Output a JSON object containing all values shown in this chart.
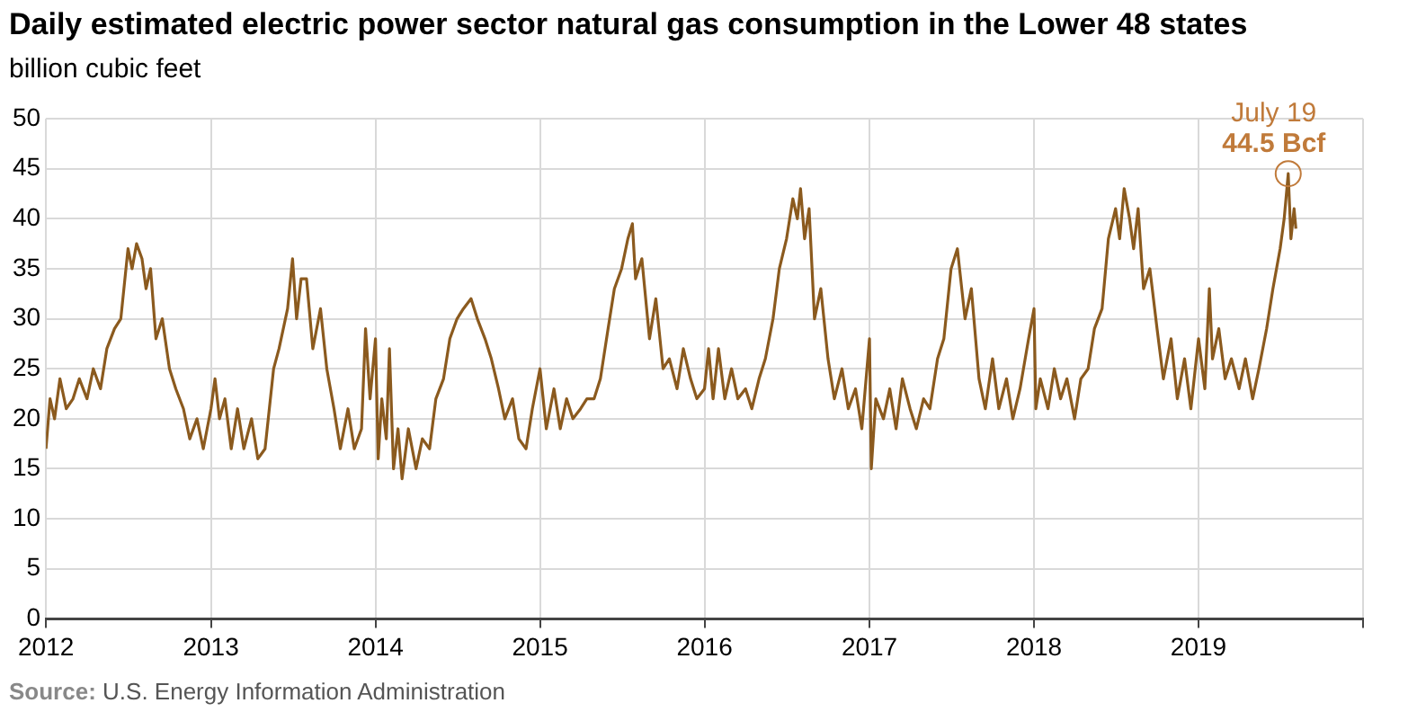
{
  "chart_data": {
    "type": "line",
    "title": "Daily estimated electric power sector natural gas consumption in the Lower 48 states",
    "ylabel": "billion cubic feet",
    "annotations": [
      {
        "text": "July 19",
        "x": "2019-07-19",
        "y": 44.5
      },
      {
        "text": "44.5 Bcf",
        "x": "2019-07-19",
        "y": 44.5
      },
      "Source: U.S. Energy Information Administration"
    ],
    "xlim": [
      "2012",
      "2020"
    ],
    "xticks": [
      "2012",
      "2013",
      "2014",
      "2015",
      "2016",
      "2017",
      "2018",
      "2019",
      {
        "value": "2020",
        "label": null
      }
    ],
    "ylim": [
      0,
      50
    ],
    "yticks": [
      0,
      5,
      10,
      15,
      20,
      25,
      30,
      35,
      40,
      45,
      50
    ],
    "grid": true,
    "legend": false,
    "marker": "none",
    "line_style": "solid",
    "series": [
      {
        "color": "#8b5a1e",
        "x": [
          "2012-01-01",
          "2012-01-10",
          "2012-01-20",
          "2012-02-01",
          "2012-02-15",
          "2012-03-01",
          "2012-03-15",
          "2012-04-01",
          "2012-04-15",
          "2012-05-01",
          "2012-05-15",
          "2012-06-01",
          "2012-06-15",
          "2012-07-01",
          "2012-07-10",
          "2012-07-20",
          "2012-08-01",
          "2012-08-10",
          "2012-08-20",
          "2012-09-01",
          "2012-09-15",
          "2012-10-01",
          "2012-10-15",
          "2012-11-01",
          "2012-11-15",
          "2012-12-01",
          "2012-12-15",
          "2013-01-01",
          "2013-01-10",
          "2013-01-20",
          "2013-02-01",
          "2013-02-15",
          "2013-03-01",
          "2013-03-15",
          "2013-04-01",
          "2013-04-15",
          "2013-05-01",
          "2013-05-20",
          "2013-06-01",
          "2013-06-20",
          "2013-07-01",
          "2013-07-10",
          "2013-07-20",
          "2013-08-01",
          "2013-08-15",
          "2013-09-01",
          "2013-09-15",
          "2013-10-01",
          "2013-10-15",
          "2013-11-01",
          "2013-11-15",
          "2013-12-01",
          "2013-12-10",
          "2013-12-20",
          "2014-01-01",
          "2014-01-07",
          "2014-01-15",
          "2014-01-25",
          "2014-02-01",
          "2014-02-10",
          "2014-02-20",
          "2014-03-01",
          "2014-03-15",
          "2014-04-01",
          "2014-04-15",
          "2014-05-01",
          "2014-05-15",
          "2014-06-01",
          "2014-06-15",
          "2014-07-01",
          "2014-07-15",
          "2014-08-01",
          "2014-08-15",
          "2014-09-01",
          "2014-09-15",
          "2014-10-01",
          "2014-10-15",
          "2014-11-01",
          "2014-11-15",
          "2014-12-01",
          "2014-12-15",
          "2015-01-01",
          "2015-01-15",
          "2015-02-01",
          "2015-02-15",
          "2015-03-01",
          "2015-03-15",
          "2015-04-01",
          "2015-04-15",
          "2015-05-01",
          "2015-05-15",
          "2015-06-01",
          "2015-06-15",
          "2015-07-01",
          "2015-07-15",
          "2015-07-25",
          "2015-08-01",
          "2015-08-15",
          "2015-09-01",
          "2015-09-15",
          "2015-10-01",
          "2015-10-15",
          "2015-11-01",
          "2015-11-15",
          "2015-12-01",
          "2015-12-15",
          "2016-01-01",
          "2016-01-10",
          "2016-01-20",
          "2016-02-01",
          "2016-02-15",
          "2016-03-01",
          "2016-03-15",
          "2016-04-01",
          "2016-04-15",
          "2016-05-01",
          "2016-05-15",
          "2016-06-01",
          "2016-06-15",
          "2016-07-01",
          "2016-07-15",
          "2016-07-25",
          "2016-08-01",
          "2016-08-10",
          "2016-08-20",
          "2016-09-01",
          "2016-09-15",
          "2016-10-01",
          "2016-10-15",
          "2016-11-01",
          "2016-11-15",
          "2016-12-01",
          "2016-12-15",
          "2017-01-01",
          "2017-01-05",
          "2017-01-15",
          "2017-02-01",
          "2017-02-15",
          "2017-03-01",
          "2017-03-15",
          "2017-04-01",
          "2017-04-15",
          "2017-05-01",
          "2017-05-15",
          "2017-06-01",
          "2017-06-15",
          "2017-07-01",
          "2017-07-15",
          "2017-08-01",
          "2017-08-15",
          "2017-09-01",
          "2017-09-15",
          "2017-10-01",
          "2017-10-15",
          "2017-11-01",
          "2017-11-15",
          "2017-12-01",
          "2017-12-20",
          "2018-01-01",
          "2018-01-05",
          "2018-01-15",
          "2018-02-01",
          "2018-02-15",
          "2018-03-01",
          "2018-03-15",
          "2018-04-01",
          "2018-04-15",
          "2018-05-01",
          "2018-05-15",
          "2018-06-01",
          "2018-06-15",
          "2018-07-01",
          "2018-07-10",
          "2018-07-20",
          "2018-08-01",
          "2018-08-10",
          "2018-08-20",
          "2018-09-01",
          "2018-09-15",
          "2018-10-01",
          "2018-10-15",
          "2018-11-01",
          "2018-11-15",
          "2018-12-01",
          "2018-12-15",
          "2019-01-01",
          "2019-01-15",
          "2019-01-25",
          "2019-02-01",
          "2019-02-15",
          "2019-03-01",
          "2019-03-15",
          "2019-04-01",
          "2019-04-15",
          "2019-05-01",
          "2019-05-15",
          "2019-06-01",
          "2019-06-15",
          "2019-07-01",
          "2019-07-10",
          "2019-07-19",
          "2019-07-25",
          "2019-08-01",
          "2019-08-05"
        ],
        "values": [
          17,
          22,
          20,
          24,
          21,
          22,
          24,
          22,
          25,
          23,
          27,
          29,
          30,
          37,
          35,
          37.5,
          36,
          33,
          35,
          28,
          30,
          25,
          23,
          21,
          18,
          20,
          17,
          21,
          24,
          20,
          22,
          17,
          21,
          17,
          20,
          16,
          17,
          25,
          27,
          31,
          36,
          30,
          34,
          34,
          27,
          31,
          25,
          21,
          17,
          21,
          17,
          19,
          29,
          22,
          28,
          16,
          22,
          18,
          27,
          15,
          19,
          14,
          19,
          15,
          18,
          17,
          22,
          24,
          28,
          30,
          31,
          32,
          30,
          28,
          26,
          23,
          20,
          22,
          18,
          17,
          21,
          25,
          19,
          23,
          19,
          22,
          20,
          21,
          22,
          22,
          24,
          29,
          33,
          35,
          38,
          39.5,
          34,
          36,
          28,
          32,
          25,
          26,
          23,
          27,
          24,
          22,
          23,
          27,
          22,
          27,
          22,
          25,
          22,
          23,
          21,
          24,
          26,
          30,
          35,
          38,
          42,
          40,
          43,
          38,
          41,
          30,
          33,
          26,
          22,
          25,
          21,
          23,
          19,
          28,
          15,
          22,
          20,
          23,
          19,
          24,
          21,
          19,
          22,
          21,
          26,
          28,
          35,
          37,
          30,
          33,
          24,
          21,
          26,
          21,
          24,
          20,
          23,
          28,
          31,
          21,
          24,
          21,
          25,
          22,
          24,
          20,
          24,
          25,
          29,
          31,
          38,
          41,
          38,
          43,
          40,
          37,
          41,
          33,
          35,
          29,
          24,
          28,
          22,
          26,
          21,
          28,
          23,
          33,
          26,
          29,
          24,
          26,
          23,
          26,
          22,
          25,
          29,
          33,
          37,
          40,
          44.5,
          38,
          41,
          39
        ]
      }
    ]
  }
}
